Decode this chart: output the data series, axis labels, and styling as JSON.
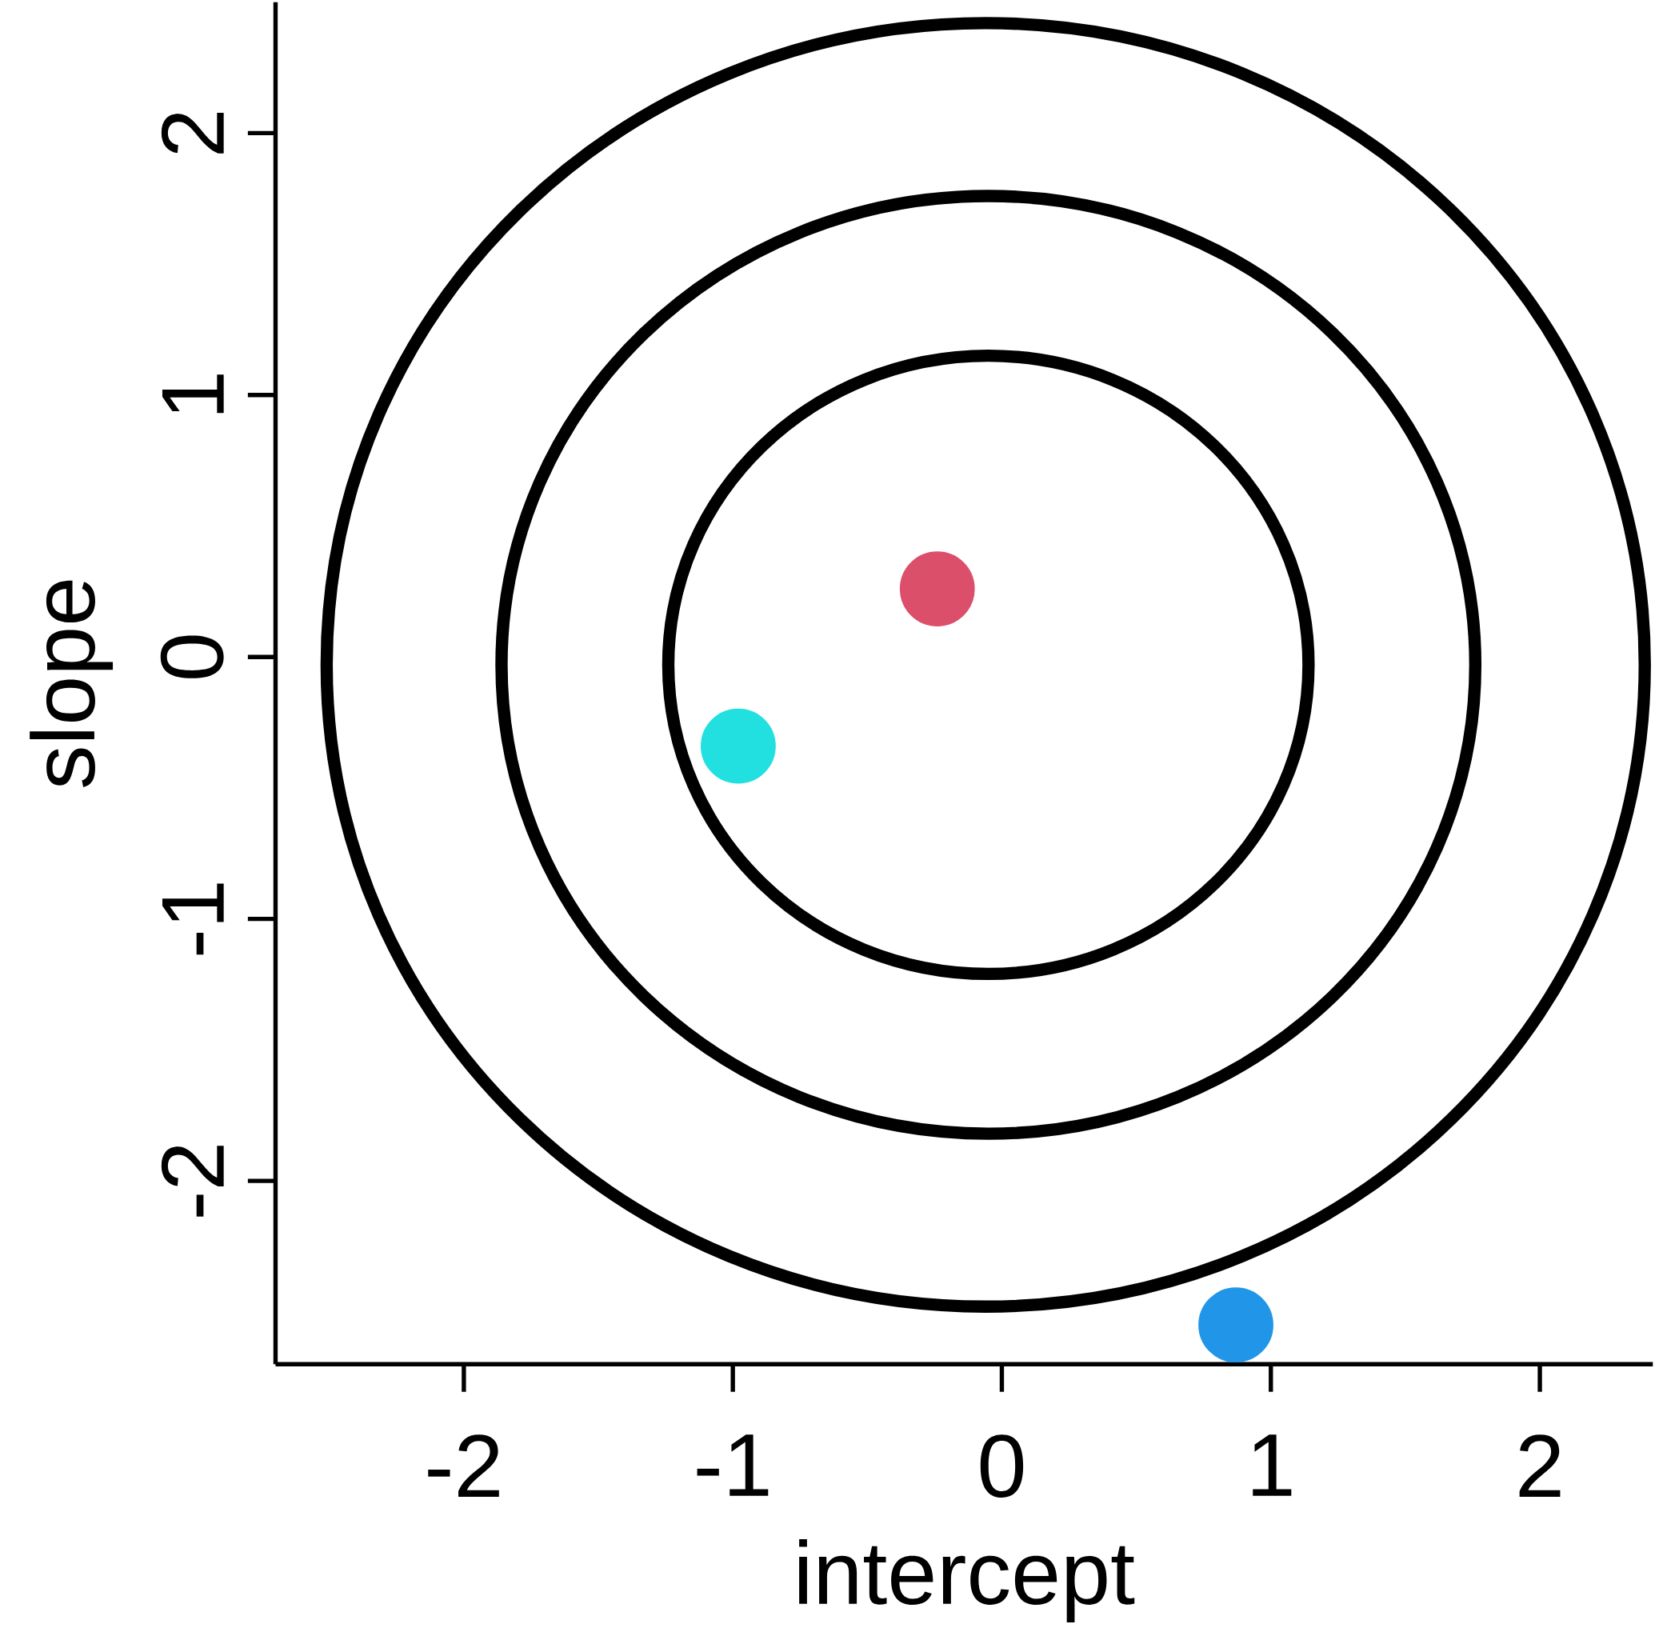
{
  "chart_data": {
    "type": "scatter",
    "xlabel": "intercept",
    "ylabel": "slope",
    "xlim": [
      -2.7,
      2.42
    ],
    "ylim": [
      -2.7,
      2.5
    ],
    "xticks": [
      -2,
      -1,
      0,
      1,
      2
    ],
    "yticks": [
      -2,
      -1,
      0,
      1,
      2
    ],
    "series": [
      {
        "type": "scatter",
        "color": "#dc4f6a",
        "x": [
          -0.24
        ],
        "values": [
          0.26
        ]
      },
      {
        "type": "scatter",
        "color": "#22dfe0",
        "x": [
          -0.98
        ],
        "values": [
          -0.34
        ]
      },
      {
        "type": "scatter",
        "color": "#2196e8",
        "x": [
          0.87
        ],
        "values": [
          -2.55
        ]
      }
    ]
  }
}
